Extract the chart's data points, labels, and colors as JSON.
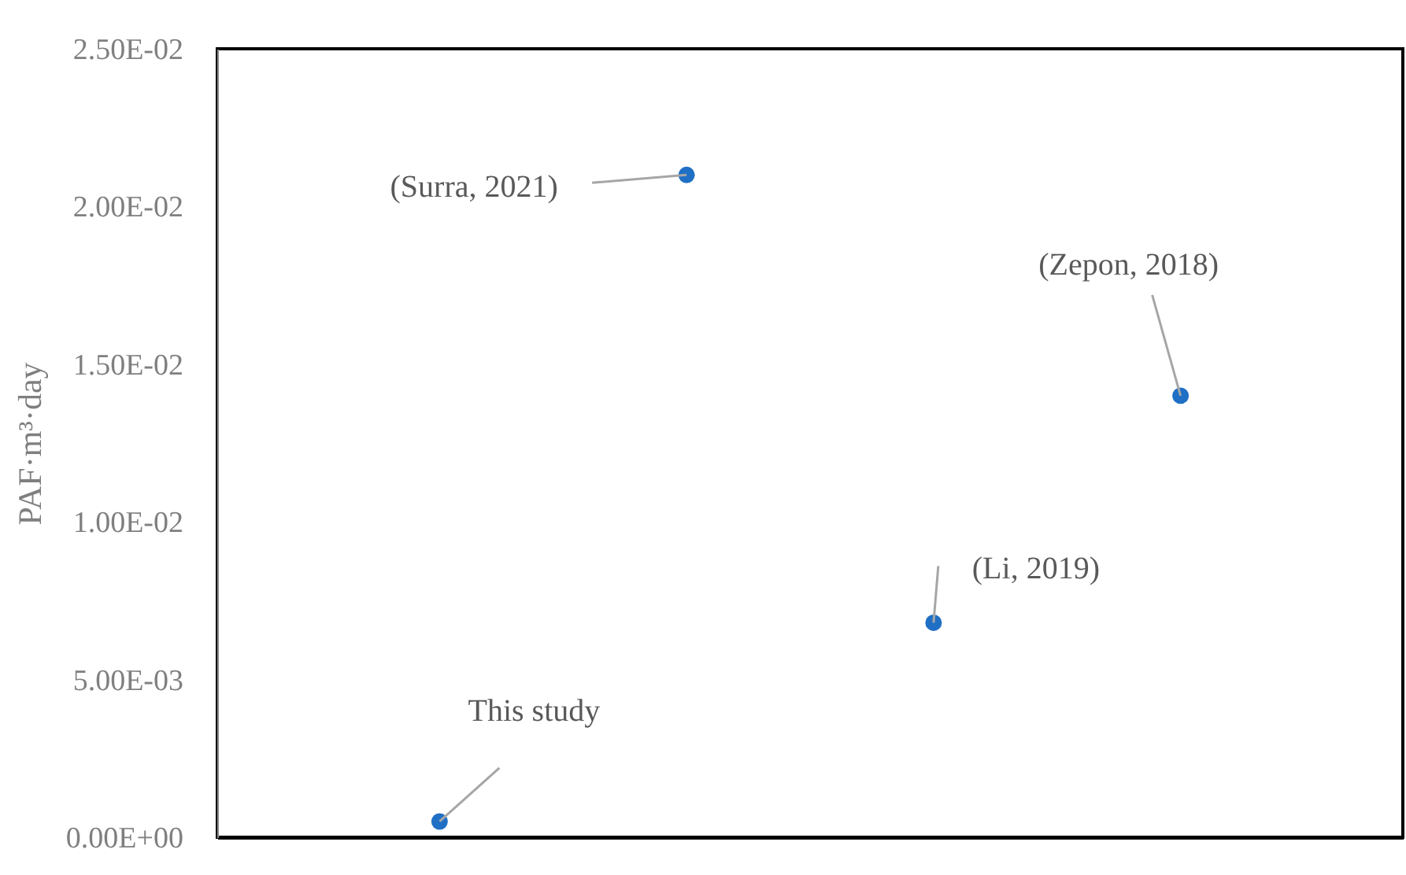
{
  "chart_data": {
    "type": "scatter",
    "ylabel": "PAF·m³·day",
    "categories": [
      null,
      null,
      null,
      null
    ],
    "series": [
      {
        "color": "#1f6fc5",
        "values": [
          0.0005,
          0.021,
          0.0068,
          0.014
        ]
      }
    ],
    "ylim": [
      0,
      0.025
    ],
    "yticks": [
      {
        "value": 0,
        "label": "0.00E+00"
      },
      {
        "value": 0.005,
        "label": "5.00E-03"
      },
      {
        "value": 0.01,
        "label": "1.00E-02"
      },
      {
        "value": 0.015,
        "label": "1.50E-02"
      },
      {
        "value": 0.02,
        "label": "2.00E-02"
      },
      {
        "value": 0.025,
        "label": "2.50E-02"
      }
    ],
    "tick_labels": "y",
    "grid": false,
    "marker": "circle",
    "annotations": [
      "This study",
      "(Surra, 2021)",
      "(Li, 2019)",
      "(Zepon, 2018)"
    ]
  }
}
